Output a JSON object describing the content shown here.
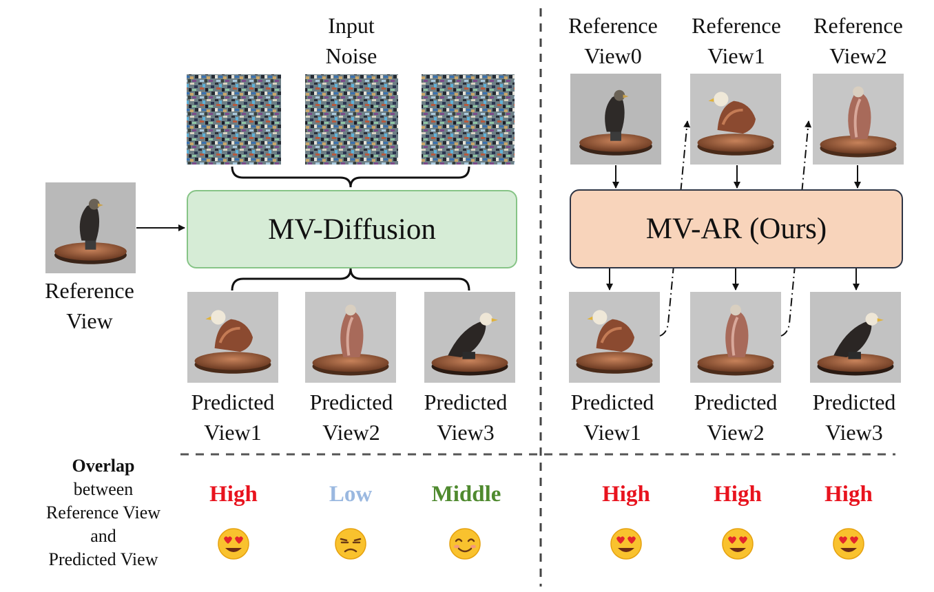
{
  "colors": {
    "high": "#e8131e",
    "low": "#9ab8e0",
    "middle": "#4f8a2f",
    "diffusion_fill": "#d6ecd6",
    "diffusion_border": "#86c486",
    "ar_fill": "#f8d4bb",
    "ar_border": "#2d3444"
  },
  "left": {
    "input_noise": [
      "Input",
      "Noise"
    ],
    "model_label": "MV-Diffusion",
    "reference_view": [
      "Reference",
      "View"
    ],
    "predicted": [
      [
        "Predicted",
        "View1"
      ],
      [
        "Predicted",
        "View2"
      ],
      [
        "Predicted",
        "View3"
      ]
    ],
    "ratings": [
      {
        "text": "High",
        "level": "high",
        "emoji": "heart-eyes"
      },
      {
        "text": "Low",
        "level": "low",
        "emoji": "unamused"
      },
      {
        "text": "Middle",
        "level": "middle",
        "emoji": "smiling"
      }
    ]
  },
  "right": {
    "references": [
      [
        "Reference",
        "View0"
      ],
      [
        "Reference",
        "View1"
      ],
      [
        "Reference",
        "View2"
      ]
    ],
    "model_label": "MV-AR (Ours)",
    "predicted": [
      [
        "Predicted",
        "View1"
      ],
      [
        "Predicted",
        "View2"
      ],
      [
        "Predicted",
        "View3"
      ]
    ],
    "ratings": [
      {
        "text": "High",
        "level": "high",
        "emoji": "heart-eyes"
      },
      {
        "text": "High",
        "level": "high",
        "emoji": "heart-eyes"
      },
      {
        "text": "High",
        "level": "high",
        "emoji": "heart-eyes"
      }
    ]
  },
  "legend": {
    "title": "Overlap",
    "lines": [
      "between",
      "Reference View",
      "and",
      "Predicted View"
    ]
  }
}
